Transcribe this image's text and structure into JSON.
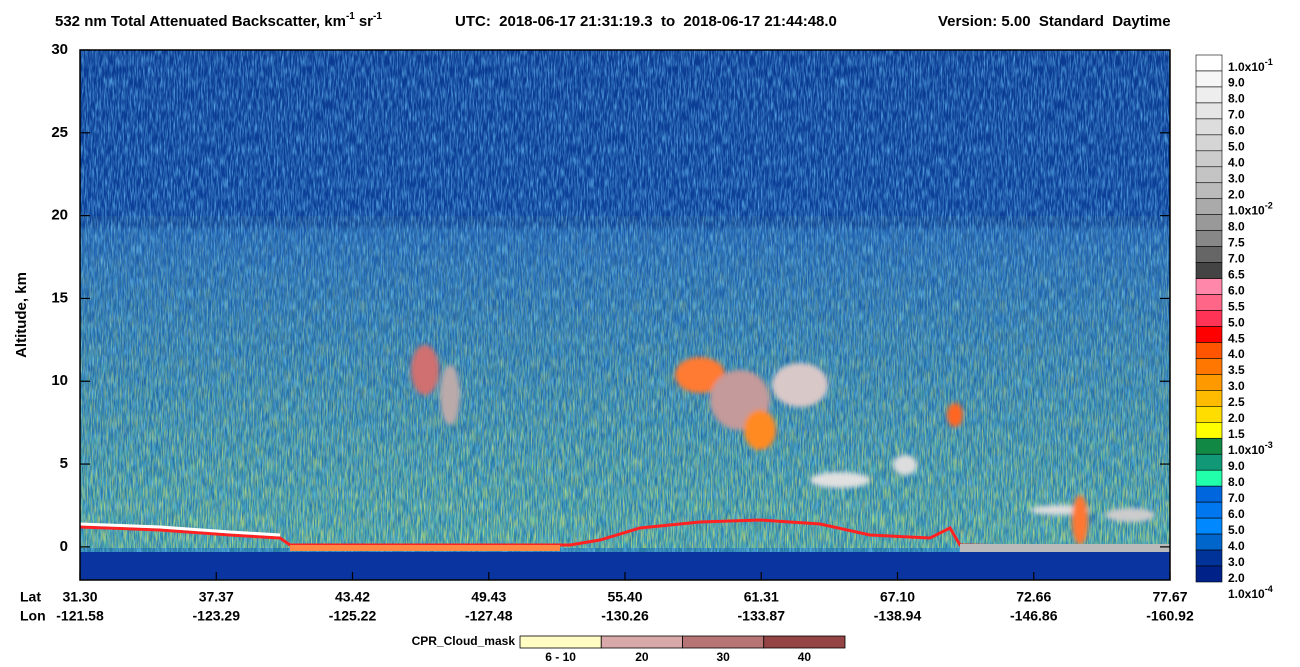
{
  "chart_data": {
    "type": "curtain",
    "title": {
      "main": "532 nm Total Attenuated Backscatter, km",
      "exp1": "-1",
      "unit2": "sr",
      "exp2": "-1",
      "time": "UTC:  2018-06-17 21:31:19.3  to  2018-06-17 21:44:48.0",
      "version": "Version: 5.00  Standard  Daytime"
    },
    "y_label": "Altitude, km",
    "ylim": [
      -2,
      30
    ],
    "yticks": [
      0,
      5,
      10,
      15,
      20,
      25,
      30
    ],
    "x_row_labels": [
      "Lat",
      "Lon"
    ],
    "x_ticks": [
      {
        "lat": "31.30",
        "lon": "-121.58"
      },
      {
        "lat": "37.37",
        "lon": "-123.29"
      },
      {
        "lat": "43.42",
        "lon": "-125.22"
      },
      {
        "lat": "49.43",
        "lon": "-127.48"
      },
      {
        "lat": "55.40",
        "lon": "-130.26"
      },
      {
        "lat": "61.31",
        "lon": "-133.87"
      },
      {
        "lat": "67.10",
        "lon": "-138.94"
      },
      {
        "lat": "72.66",
        "lon": "-146.86"
      },
      {
        "lat": "77.67",
        "lon": "-160.92"
      }
    ],
    "colorbar_colors": [
      "#ffffff",
      "#f6f6f6",
      "#eeeeee",
      "#e6e6e6",
      "#dddddd",
      "#d5d5d5",
      "#cccccc",
      "#c4c4c4",
      "#bbbbbb",
      "#aaaaaa",
      "#999999",
      "#888888",
      "#666666",
      "#444444",
      "#ff88aa",
      "#ff6688",
      "#ff3355",
      "#ff0000",
      "#ff5500",
      "#ff7700",
      "#ff9900",
      "#ffbb00",
      "#ffdd00",
      "#ffff00",
      "#118844",
      "#119977",
      "#22ffaa",
      "#0066dd",
      "#0077ee",
      "#0088ff",
      "#0066cc",
      "#003399",
      "#002288"
    ],
    "colorbar_labels": [
      {
        "label": "1.0x10",
        "exp": "-1"
      },
      {
        "label": "9.0"
      },
      {
        "label": "8.0"
      },
      {
        "label": "7.0"
      },
      {
        "label": "6.0"
      },
      {
        "label": "5.0"
      },
      {
        "label": "4.0"
      },
      {
        "label": "3.0"
      },
      {
        "label": "2.0"
      },
      {
        "label": "1.0x10",
        "exp": "-2"
      },
      {
        "label": "8.0"
      },
      {
        "label": "7.5"
      },
      {
        "label": "7.0"
      },
      {
        "label": "6.5"
      },
      {
        "label": "6.0"
      },
      {
        "label": "5.5"
      },
      {
        "label": "5.0"
      },
      {
        "label": "4.5"
      },
      {
        "label": "4.0"
      },
      {
        "label": "3.5"
      },
      {
        "label": "3.0"
      },
      {
        "label": "2.5"
      },
      {
        "label": "2.0"
      },
      {
        "label": "1.5"
      },
      {
        "label": "1.0x10",
        "exp": "-3"
      },
      {
        "label": "9.0"
      },
      {
        "label": "8.0"
      },
      {
        "label": "7.0"
      },
      {
        "label": "6.0"
      },
      {
        "label": "5.0"
      },
      {
        "label": "4.0"
      },
      {
        "label": "3.0"
      },
      {
        "label": "2.0"
      },
      {
        "label": "1.0x10",
        "exp": "-4"
      }
    ],
    "cloud_mask": {
      "title": "CPR_Cloud_mask",
      "items": [
        {
          "label": "6 - 10",
          "color": "#fffcc4"
        },
        {
          "label": "20",
          "color": "#d9a9a9"
        },
        {
          "label": "30",
          "color": "#b77474"
        },
        {
          "label": "40",
          "color": "#944444"
        }
      ]
    }
  }
}
